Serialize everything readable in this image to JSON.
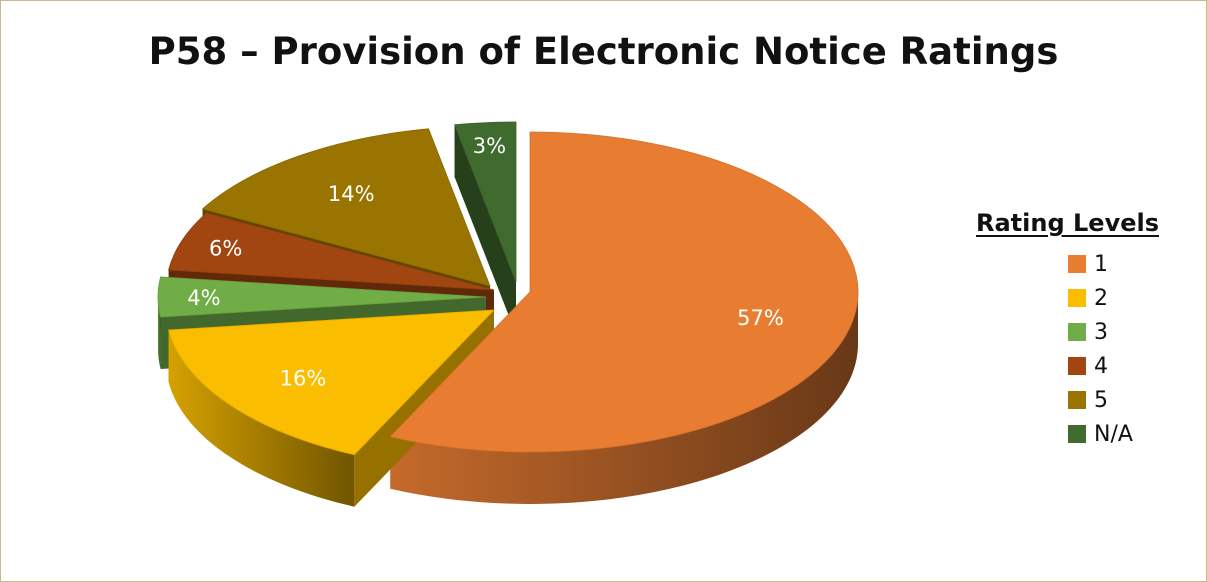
{
  "chart_data": {
    "type": "pie",
    "title": "P58 – Provision of Electronic Notice Ratings",
    "legend_title": "Rating Levels",
    "legend_position": "right",
    "slices": [
      {
        "label": "1",
        "value": 57,
        "display": "57%",
        "color": "#E87D32"
      },
      {
        "label": "2",
        "value": 16,
        "display": "16%",
        "color": "#FBBD00"
      },
      {
        "label": "3",
        "value": 4,
        "display": "4%",
        "color": "#70AD47"
      },
      {
        "label": "4",
        "value": 6,
        "display": "6%",
        "color": "#A14511"
      },
      {
        "label": "5",
        "value": 14,
        "display": "14%",
        "color": "#9A7400"
      },
      {
        "label": "N/A",
        "value": 3,
        "display": "3%",
        "color": "#3F6B2F"
      }
    ]
  }
}
